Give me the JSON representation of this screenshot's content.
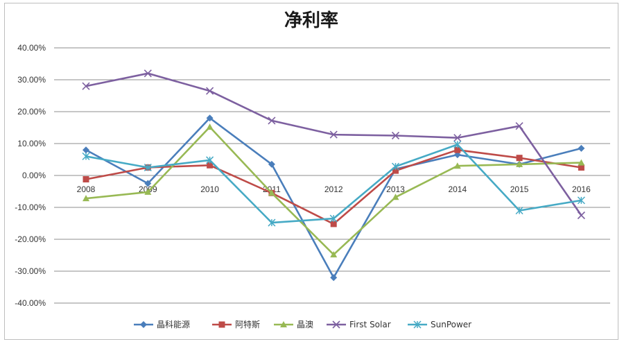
{
  "chart_data": {
    "type": "line",
    "title": "净利率",
    "xlabel": "",
    "ylabel": "",
    "ylim": [
      -0.4,
      0.4
    ],
    "yticks": [
      "40.00%",
      "30.00%",
      "20.00%",
      "10.00%",
      "0.00%",
      "-10.00%",
      "-20.00%",
      "-30.00%",
      "-40.00%"
    ],
    "categories": [
      "2008",
      "2009",
      "2010",
      "2011",
      "2012",
      "2013",
      "2014",
      "2015",
      "2016"
    ],
    "grid": true,
    "legend_position": "bottom",
    "series": [
      {
        "name": "晶科能源",
        "color": "#4a7ebb",
        "marker": "diamond",
        "values": [
          0.08,
          -0.025,
          0.18,
          0.035,
          -0.32,
          0.02,
          0.065,
          0.035,
          0.085
        ]
      },
      {
        "name": "阿特斯",
        "color": "#be4b48",
        "marker": "square",
        "values": [
          -0.012,
          0.025,
          0.032,
          -0.055,
          -0.152,
          0.015,
          0.08,
          0.055,
          0.025
        ]
      },
      {
        "name": "晶澳",
        "color": "#98b954",
        "marker": "triangle",
        "values": [
          -0.072,
          -0.052,
          0.152,
          -0.055,
          -0.248,
          -0.068,
          0.03,
          0.035,
          0.04
        ]
      },
      {
        "name": "First Solar",
        "color": "#7d60a0",
        "marker": "x",
        "values": [
          0.28,
          0.32,
          0.265,
          0.172,
          0.128,
          0.125,
          0.118,
          0.155,
          -0.125
        ]
      },
      {
        "name": "SunPower",
        "color": "#46aac5",
        "marker": "star",
        "values": [
          0.06,
          0.025,
          0.048,
          -0.148,
          -0.135,
          0.028,
          0.097,
          -0.11,
          -0.078
        ]
      }
    ]
  }
}
